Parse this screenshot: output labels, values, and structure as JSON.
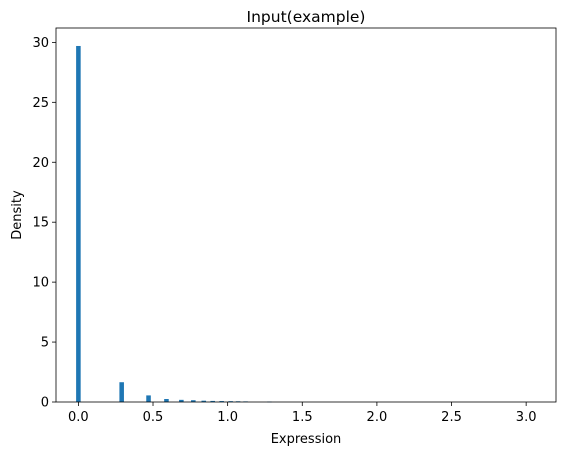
{
  "chart_data": {
    "type": "bar",
    "title": "Input(example)",
    "xlabel": "Expression",
    "ylabel": "Density",
    "xlim": [
      -0.15,
      3.2
    ],
    "ylim": [
      0,
      31.2
    ],
    "xticks": [
      0.0,
      0.5,
      1.0,
      1.5,
      2.0,
      2.5,
      3.0
    ],
    "xtick_labels": [
      "0.0",
      "0.5",
      "1.0",
      "1.5",
      "2.0",
      "2.5",
      "3.0"
    ],
    "yticks": [
      0,
      5,
      10,
      15,
      20,
      25,
      30
    ],
    "ytick_labels": [
      "0",
      "5",
      "10",
      "15",
      "20",
      "25",
      "30"
    ],
    "bin_width": 0.0305,
    "bar_color": "#1f77b4",
    "bins": [
      {
        "x": 0.0,
        "density": 29.7
      },
      {
        "x": 0.29,
        "density": 1.65
      },
      {
        "x": 0.47,
        "density": 0.55
      },
      {
        "x": 0.59,
        "density": 0.25
      },
      {
        "x": 0.69,
        "density": 0.18
      },
      {
        "x": 0.77,
        "density": 0.15
      },
      {
        "x": 0.84,
        "density": 0.11
      },
      {
        "x": 0.9,
        "density": 0.09
      },
      {
        "x": 0.96,
        "density": 0.08
      },
      {
        "x": 1.02,
        "density": 0.07
      },
      {
        "x": 1.07,
        "density": 0.06
      },
      {
        "x": 1.12,
        "density": 0.05
      },
      {
        "x": 1.28,
        "density": 0.03
      }
    ]
  }
}
